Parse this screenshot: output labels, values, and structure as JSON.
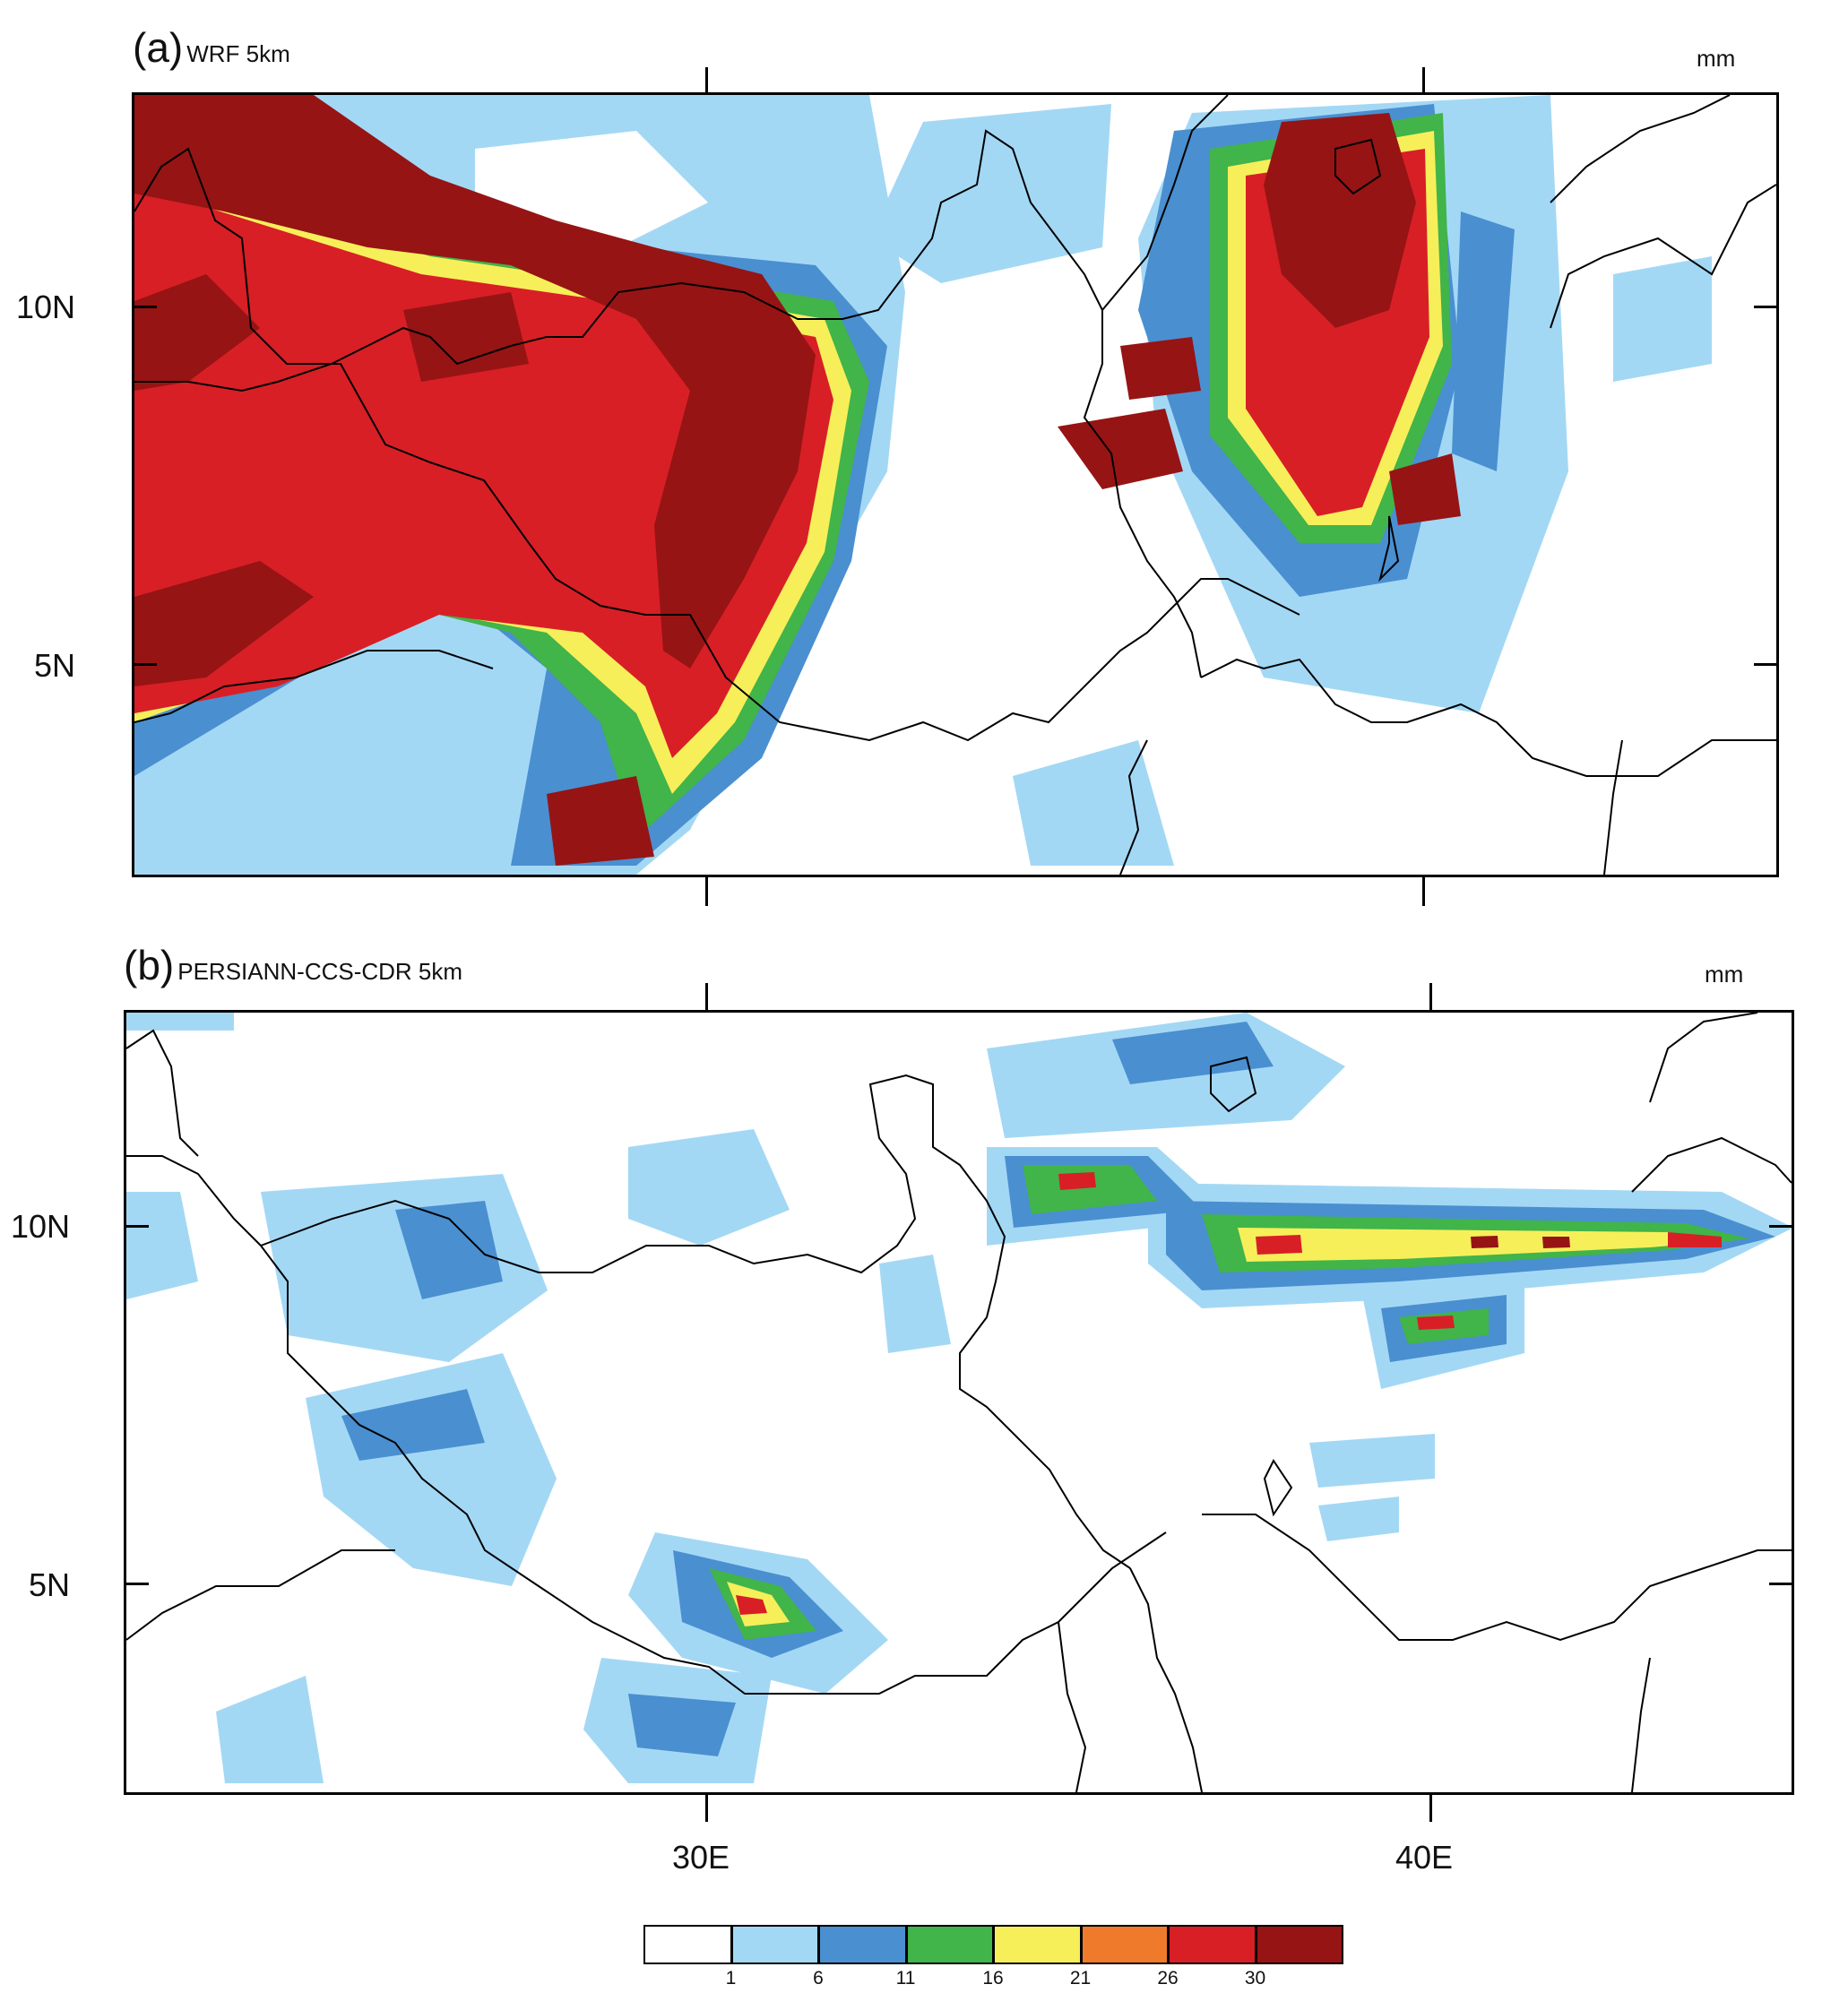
{
  "panels": [
    {
      "id": "a",
      "label": "(a)",
      "title": "WRF 5km",
      "units": "mm"
    },
    {
      "id": "b",
      "label": "(b)",
      "title": "PERSIANN-CCS-CDR 5km",
      "units": "mm"
    }
  ],
  "axes": {
    "lat_labels": [
      "10N",
      "5N"
    ],
    "lon_labels": [
      "30E",
      "40E"
    ]
  },
  "colorbar": {
    "levels": [
      "1",
      "6",
      "11",
      "16",
      "21",
      "26",
      "30"
    ],
    "colors": [
      "#ffffff",
      "#a3d8f5",
      "#4a8fd0",
      "#41b44a",
      "#f6ef5a",
      "#f07a2c",
      "#d81f26",
      "#961414"
    ]
  },
  "map_colors": {
    "border": "#000000",
    "low": "#a3d8f5",
    "mid": "#4a8fd0",
    "green": "#41b44a",
    "yellow": "#f6ef5a",
    "orange": "#f07a2c",
    "red": "#d81f26",
    "dark_red": "#961414"
  }
}
